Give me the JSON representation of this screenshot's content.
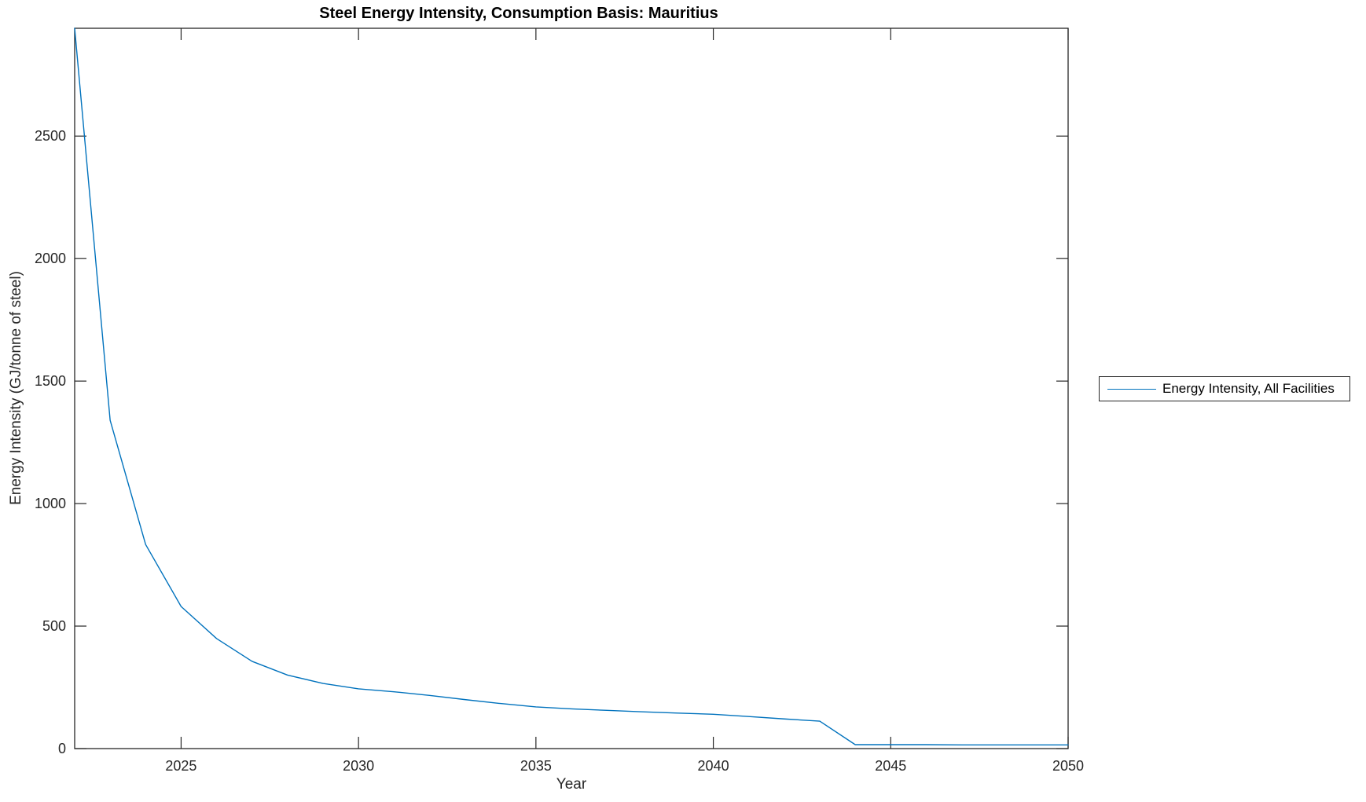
{
  "figure": {
    "title": "Steel Energy Intensity, Consumption Basis: Mauritius",
    "legend": {
      "entries": [
        {
          "label": "Energy Intensity, All Facilities",
          "color": "#0072BD"
        }
      ]
    }
  },
  "chart_data": {
    "type": "line",
    "title": "Steel Energy Intensity, Consumption Basis: Mauritius",
    "xlabel": "Year",
    "ylabel": "Energy Intensity (GJ/tonne of steel)",
    "xlim": [
      2022,
      2050
    ],
    "ylim": [
      0,
      2940
    ],
    "xticks": [
      2025,
      2030,
      2035,
      2040,
      2045,
      2050
    ],
    "yticks": [
      0,
      500,
      1000,
      1500,
      2000,
      2500
    ],
    "grid": false,
    "box": true,
    "legend_position": "outside-right",
    "axis_color": "#262626",
    "line_color": "#0072BD",
    "series": [
      {
        "name": "Energy Intensity, All Facilities",
        "x": [
          2022,
          2023,
          2024,
          2025,
          2026,
          2027,
          2028,
          2029,
          2030,
          2031,
          2032,
          2033,
          2034,
          2035,
          2036,
          2037,
          2038,
          2039,
          2040,
          2041,
          2042,
          2043,
          2044,
          2045,
          2046,
          2047,
          2048,
          2049,
          2050
        ],
        "y": [
          2940,
          1340,
          833,
          580,
          449,
          356,
          300,
          266,
          244,
          232,
          217,
          200,
          184,
          170,
          162,
          156,
          150,
          145,
          140,
          131,
          121,
          112,
          16,
          16,
          16,
          15,
          15,
          15,
          15
        ]
      }
    ]
  }
}
